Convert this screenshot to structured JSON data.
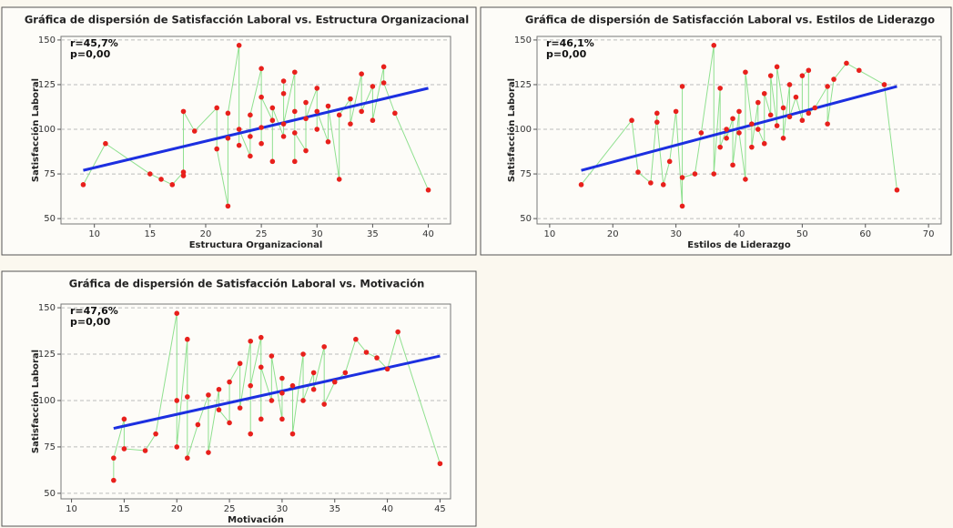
{
  "chart_data": [
    {
      "type": "scatter",
      "title": "Gráfica de dispersión de Satisfacción Laboral vs. Estructura Organizacional",
      "x_label": "Estructura Organizacional",
      "y_label": "Satisfacción Laboral",
      "annotations": [
        "r=45,7%",
        "p=0,00"
      ],
      "x": [
        9,
        11,
        15,
        16,
        17,
        18,
        18,
        18,
        19,
        21,
        21,
        22,
        22,
        22,
        23,
        23,
        23,
        24,
        24,
        24,
        25,
        25,
        25,
        25,
        26,
        26,
        26,
        27,
        27,
        27,
        27,
        28,
        28,
        28,
        28,
        29,
        29,
        29,
        30,
        30,
        30,
        31,
        31,
        32,
        32,
        33,
        33,
        34,
        34,
        35,
        35,
        36,
        36,
        37,
        40
      ],
      "values": [
        69,
        92,
        75,
        72,
        69,
        76,
        74,
        110,
        99,
        112,
        89,
        57,
        95,
        109,
        147,
        91,
        100,
        85,
        96,
        108,
        134,
        101,
        92,
        118,
        105,
        82,
        112,
        96,
        120,
        127,
        103,
        132,
        82,
        110,
        98,
        88,
        115,
        106,
        123,
        100,
        110,
        93,
        113,
        72,
        108,
        117,
        103,
        131,
        110,
        124,
        105,
        135,
        126,
        109,
        66
      ],
      "color": "#e8201c",
      "line_color": "#8fe08f",
      "trend": {
        "x": [
          9,
          40
        ],
        "y": [
          77,
          123
        ],
        "color": "#1c2fe0"
      },
      "xlim": [
        7,
        42
      ],
      "ylim": [
        47,
        152
      ],
      "xticks": [
        10,
        15,
        20,
        25,
        30,
        35,
        40
      ],
      "yticks": [
        50,
        75,
        100,
        125,
        150
      ],
      "grid": true
    },
    {
      "type": "scatter",
      "title": "Gráfica de dispersión de Satisfacción Laboral vs. Estilos de Liderazgo",
      "x_label": "Estilos de Liderazgo",
      "y_label": "Satisfacción Laboral",
      "annotations": [
        "r=46,1%",
        "p=0,00"
      ],
      "x": [
        15,
        23,
        24,
        26,
        27,
        27,
        28,
        29,
        30,
        31,
        31,
        31,
        33,
        34,
        36,
        36,
        37,
        37,
        38,
        38,
        39,
        39,
        40,
        40,
        41,
        41,
        42,
        42,
        43,
        43,
        44,
        44,
        45,
        45,
        46,
        46,
        47,
        47,
        48,
        48,
        49,
        50,
        50,
        51,
        51,
        52,
        54,
        54,
        55,
        57,
        59,
        63,
        65
      ],
      "values": [
        69,
        105,
        76,
        70,
        109,
        104,
        69,
        82,
        110,
        57,
        124,
        73,
        75,
        98,
        147,
        75,
        123,
        90,
        100,
        95,
        106,
        80,
        110,
        98,
        72,
        132,
        103,
        90,
        115,
        100,
        92,
        120,
        108,
        130,
        102,
        135,
        112,
        95,
        125,
        107,
        118,
        105,
        130,
        133,
        109,
        112,
        124,
        103,
        128,
        137,
        133,
        125,
        66
      ],
      "color": "#e8201c",
      "line_color": "#8fe08f",
      "trend": {
        "x": [
          15,
          65
        ],
        "y": [
          77,
          124
        ],
        "color": "#1c2fe0"
      },
      "xlim": [
        8,
        72
      ],
      "ylim": [
        47,
        152
      ],
      "xticks": [
        10,
        20,
        30,
        40,
        50,
        60,
        70
      ],
      "yticks": [
        50,
        75,
        100,
        125,
        150
      ],
      "grid": true
    },
    {
      "type": "scatter",
      "title": "Gráfica de dispersión de Satisfacción Laboral vs. Motivación",
      "x_label": "Motivación",
      "y_label": "Satisfacción Laboral",
      "annotations": [
        "r=47,6%",
        "p=0,00"
      ],
      "x": [
        14,
        14,
        15,
        15,
        17,
        18,
        20,
        20,
        20,
        21,
        21,
        21,
        22,
        23,
        23,
        24,
        24,
        25,
        25,
        26,
        26,
        27,
        27,
        27,
        28,
        28,
        28,
        29,
        29,
        30,
        30,
        30,
        31,
        31,
        32,
        32,
        33,
        33,
        34,
        34,
        35,
        36,
        37,
        38,
        39,
        40,
        41,
        45
      ],
      "values": [
        57,
        69,
        90,
        74,
        73,
        82,
        147,
        100,
        75,
        133,
        102,
        69,
        87,
        103,
        72,
        106,
        95,
        88,
        110,
        120,
        96,
        132,
        82,
        108,
        134,
        90,
        118,
        100,
        124,
        90,
        112,
        104,
        108,
        82,
        125,
        100,
        115,
        106,
        129,
        98,
        110,
        115,
        133,
        126,
        123,
        117,
        137,
        66
      ],
      "color": "#e8201c",
      "line_color": "#8fe08f",
      "trend": {
        "x": [
          14,
          45
        ],
        "y": [
          85,
          124
        ],
        "color": "#1c2fe0"
      },
      "xlim": [
        9,
        46
      ],
      "ylim": [
        47,
        152
      ],
      "xticks": [
        10,
        15,
        20,
        25,
        30,
        35,
        40,
        45
      ],
      "yticks": [
        50,
        75,
        100,
        125,
        150
      ],
      "grid": true
    }
  ]
}
